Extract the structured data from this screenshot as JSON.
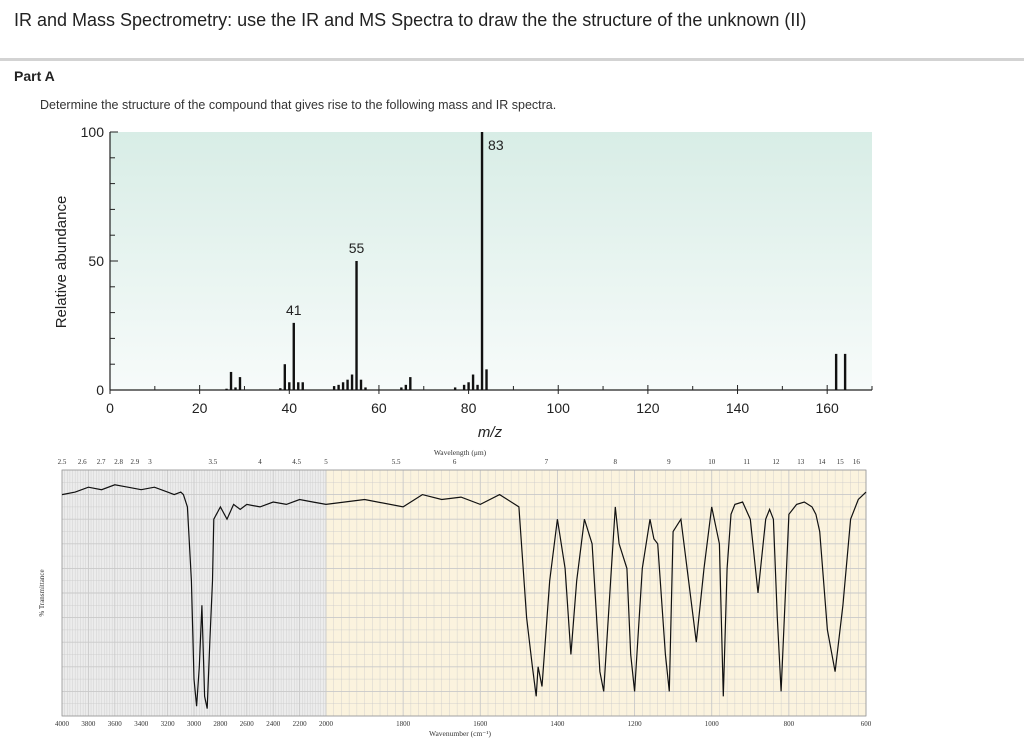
{
  "page": {
    "title": "IR and Mass Spectrometry: use the IR and MS Spectra to draw the the structure of the unknown (II)",
    "part_label": "Part A",
    "instruction": "Determine the structure of the compound that gives rise to the following mass and IR spectra."
  },
  "colors": {
    "ms_bg_top": "#d8ede6",
    "ms_bg_bottom": "#f7fbfa",
    "ir_bg_left": "#ececec",
    "ir_bg_right": "#fbf3de",
    "ir_grid": "#c9c9c9",
    "trace": "#111111"
  },
  "chart_data": [
    {
      "type": "bar",
      "title": "",
      "xlabel": "m/z",
      "ylabel": "Relative abundance",
      "xlim": [
        0,
        170
      ],
      "ylim": [
        0,
        100
      ],
      "xticks": [
        "0",
        "20",
        "40",
        "60",
        "80",
        "100",
        "120",
        "140",
        "160"
      ],
      "yticks": [
        "0",
        "50",
        "100"
      ],
      "grid": false,
      "peak_labels": [
        {
          "text": "41",
          "mz": 41
        },
        {
          "text": "55",
          "mz": 55
        },
        {
          "text": "83",
          "mz": 83
        }
      ],
      "x": [
        26,
        27,
        28,
        29,
        38,
        39,
        40,
        41,
        42,
        43,
        50,
        51,
        52,
        53,
        54,
        55,
        56,
        57,
        65,
        66,
        67,
        77,
        79,
        80,
        81,
        82,
        83,
        84,
        162,
        164
      ],
      "values": [
        0.5,
        7,
        1,
        5,
        0.7,
        10,
        3,
        26,
        3,
        3,
        1.5,
        2,
        3,
        4,
        6,
        50,
        4,
        1,
        1,
        2,
        5,
        1,
        2,
        3,
        6,
        2,
        100,
        8,
        14,
        14
      ]
    },
    {
      "type": "line",
      "title": "",
      "xlabel": "Wavenumber (cm⁻¹)",
      "x2label": "Wavelength (μm)",
      "ylabel": "% Transmittance",
      "xlim": [
        4000,
        600
      ],
      "ylim": [
        0,
        100
      ],
      "grid": true,
      "bottom_ticks": [
        "4000",
        "3800",
        "3600",
        "3400",
        "3200",
        "3000",
        "2800",
        "2600",
        "2400",
        "2200",
        "2000",
        "1800",
        "1600",
        "1400",
        "1200",
        "1000",
        "800",
        "600"
      ],
      "top_ticks": [
        "2.5",
        "2.6",
        "2.7",
        "2.8",
        "2.9",
        "3",
        "3.5",
        "4",
        "4.5",
        "5",
        "5.5",
        "6",
        "7",
        "8",
        "9",
        "10",
        "11",
        "12",
        "13",
        "14",
        "15",
        "16"
      ],
      "x": [
        4000,
        3900,
        3800,
        3700,
        3600,
        3500,
        3400,
        3300,
        3200,
        3150,
        3100,
        3080,
        3050,
        3020,
        3000,
        2980,
        2960,
        2940,
        2920,
        2900,
        2880,
        2860,
        2850,
        2800,
        2750,
        2700,
        2650,
        2600,
        2500,
        2400,
        2300,
        2200,
        2100,
        2000,
        1900,
        1800,
        1750,
        1700,
        1650,
        1600,
        1550,
        1500,
        1480,
        1465,
        1455,
        1450,
        1440,
        1420,
        1400,
        1380,
        1365,
        1350,
        1330,
        1310,
        1290,
        1280,
        1260,
        1250,
        1240,
        1220,
        1210,
        1200,
        1180,
        1160,
        1150,
        1140,
        1120,
        1110,
        1100,
        1080,
        1060,
        1040,
        1020,
        1000,
        980,
        970,
        960,
        950,
        940,
        920,
        900,
        880,
        860,
        850,
        840,
        830,
        820,
        800,
        780,
        760,
        740,
        730,
        720,
        700,
        680,
        660,
        640,
        620,
        600
      ],
      "y": [
        90,
        91,
        93,
        92,
        94,
        93,
        92,
        93,
        91,
        90,
        91,
        90,
        85,
        55,
        15,
        4,
        20,
        45,
        8,
        3,
        30,
        55,
        80,
        85,
        80,
        86,
        84,
        86,
        85,
        87,
        86,
        88,
        87,
        86,
        88,
        85,
        90,
        88,
        89,
        86,
        90,
        85,
        40,
        20,
        8,
        20,
        12,
        55,
        80,
        60,
        25,
        55,
        80,
        70,
        18,
        10,
        60,
        85,
        70,
        60,
        25,
        10,
        60,
        80,
        72,
        70,
        25,
        10,
        75,
        80,
        55,
        30,
        60,
        85,
        70,
        8,
        60,
        82,
        86,
        87,
        80,
        50,
        80,
        84,
        80,
        40,
        10,
        82,
        86,
        87,
        85,
        82,
        75,
        35,
        18,
        45,
        80,
        88,
        91
      ]
    }
  ]
}
